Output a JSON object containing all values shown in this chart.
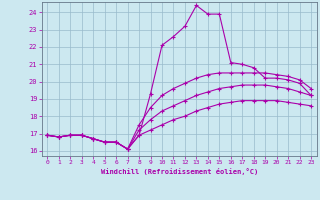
{
  "xlabel": "Windchill (Refroidissement éolien,°C)",
  "xlim": [
    -0.5,
    23.5
  ],
  "ylim": [
    15.7,
    24.6
  ],
  "yticks": [
    16,
    17,
    18,
    19,
    20,
    21,
    22,
    23,
    24
  ],
  "xticks": [
    0,
    1,
    2,
    3,
    4,
    5,
    6,
    7,
    8,
    9,
    10,
    11,
    12,
    13,
    14,
    15,
    16,
    17,
    18,
    19,
    20,
    21,
    22,
    23
  ],
  "bg_color": "#cce8f0",
  "line_color": "#aa00aa",
  "grid_color": "#99bbcc",
  "lines": [
    {
      "x": [
        0,
        1,
        2,
        3,
        4,
        5,
        6,
        7,
        8,
        9,
        10,
        11,
        12,
        13,
        14,
        15,
        16,
        17,
        18,
        19,
        20,
        21,
        22,
        23
      ],
      "y": [
        16.9,
        16.8,
        16.9,
        16.9,
        16.7,
        16.5,
        16.5,
        16.1,
        16.9,
        19.3,
        22.1,
        22.6,
        23.2,
        24.4,
        23.9,
        23.9,
        21.1,
        21.0,
        20.8,
        20.2,
        20.2,
        20.1,
        19.9,
        19.2
      ]
    },
    {
      "x": [
        0,
        1,
        2,
        3,
        4,
        5,
        6,
        7,
        8,
        9,
        10,
        11,
        12,
        13,
        14,
        15,
        16,
        17,
        18,
        19,
        20,
        21,
        22,
        23
      ],
      "y": [
        16.9,
        16.8,
        16.9,
        16.9,
        16.7,
        16.5,
        16.5,
        16.1,
        17.5,
        18.5,
        19.2,
        19.6,
        19.9,
        20.2,
        20.4,
        20.5,
        20.5,
        20.5,
        20.5,
        20.5,
        20.4,
        20.3,
        20.1,
        19.6
      ]
    },
    {
      "x": [
        0,
        1,
        2,
        3,
        4,
        5,
        6,
        7,
        8,
        9,
        10,
        11,
        12,
        13,
        14,
        15,
        16,
        17,
        18,
        19,
        20,
        21,
        22,
        23
      ],
      "y": [
        16.9,
        16.8,
        16.9,
        16.9,
        16.7,
        16.5,
        16.5,
        16.1,
        17.2,
        17.8,
        18.3,
        18.6,
        18.9,
        19.2,
        19.4,
        19.6,
        19.7,
        19.8,
        19.8,
        19.8,
        19.7,
        19.6,
        19.4,
        19.2
      ]
    },
    {
      "x": [
        0,
        1,
        2,
        3,
        4,
        5,
        6,
        7,
        8,
        9,
        10,
        11,
        12,
        13,
        14,
        15,
        16,
        17,
        18,
        19,
        20,
        21,
        22,
        23
      ],
      "y": [
        16.9,
        16.8,
        16.9,
        16.9,
        16.7,
        16.5,
        16.5,
        16.1,
        16.9,
        17.2,
        17.5,
        17.8,
        18.0,
        18.3,
        18.5,
        18.7,
        18.8,
        18.9,
        18.9,
        18.9,
        18.9,
        18.8,
        18.7,
        18.6
      ]
    }
  ]
}
